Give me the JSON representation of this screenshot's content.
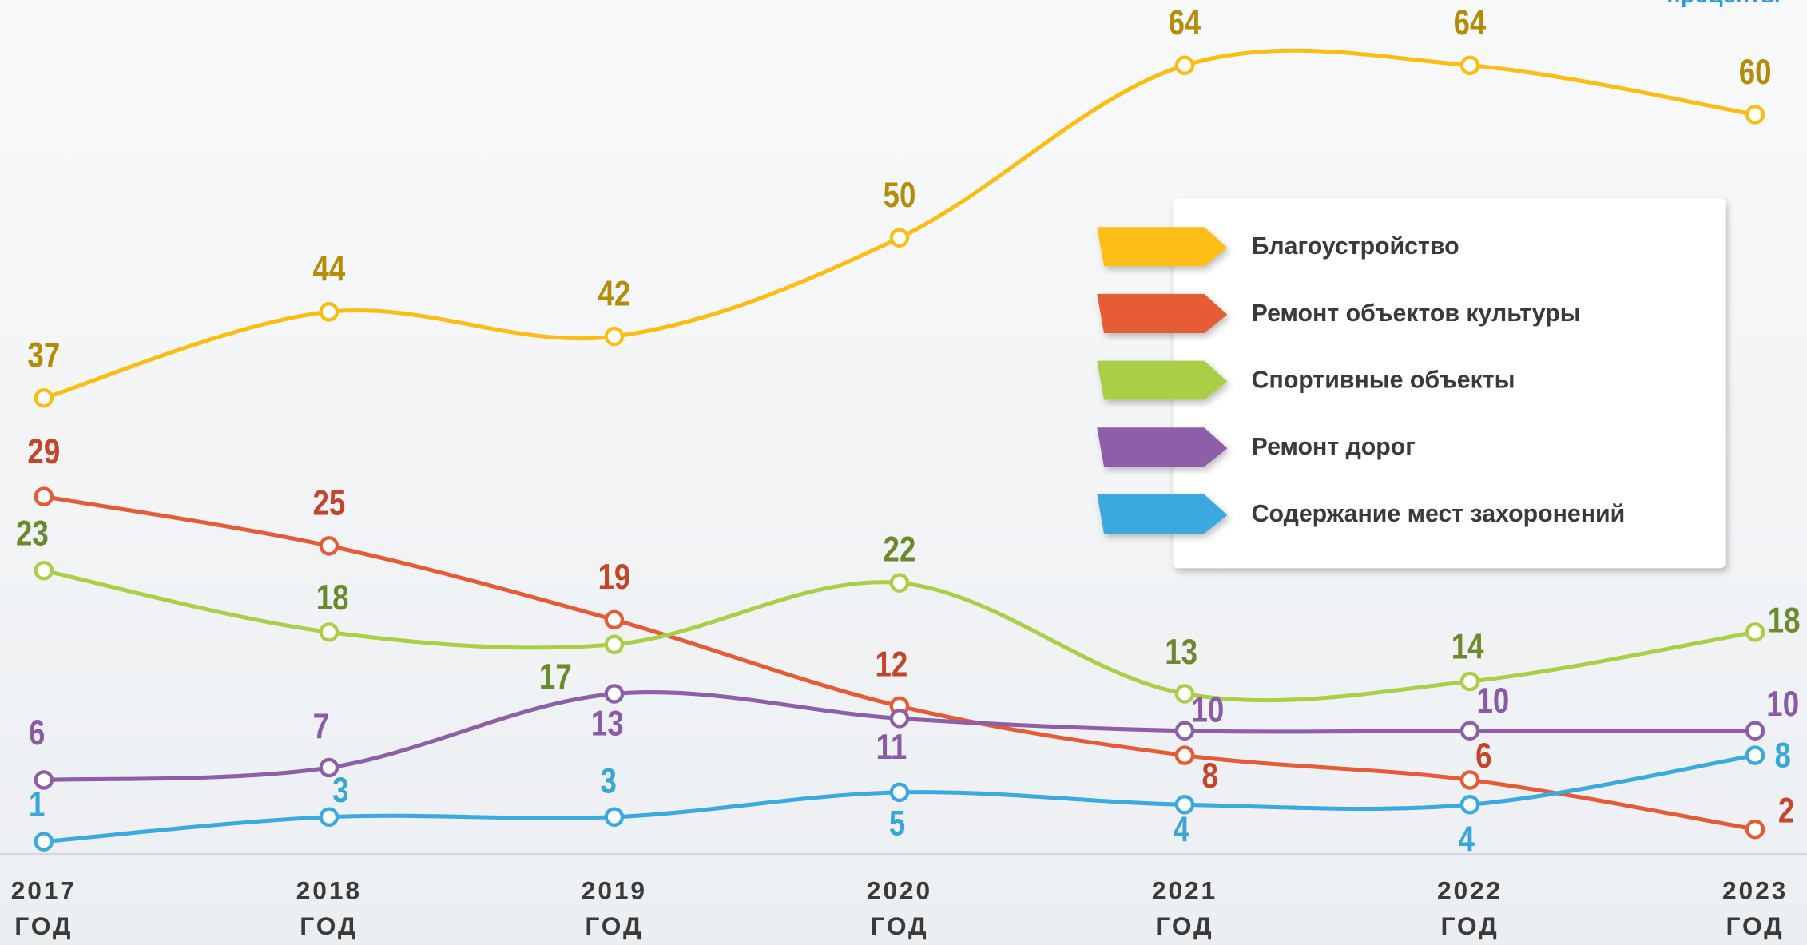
{
  "chart_data": {
    "type": "line",
    "y_label": "проценты",
    "categories": [
      "2017 ГОД",
      "2018 ГОД",
      "2019 ГОД",
      "2020 ГОД",
      "2021 ГОД",
      "2022 ГОД",
      "2023 ГОД"
    ],
    "ylim": [
      0,
      69.3
    ],
    "smooth": true,
    "series": [
      {
        "name": "Благоустройство",
        "color": "#fbbd12",
        "label_color": "#b48c08",
        "values": [
          37,
          44,
          42,
          50,
          64,
          64,
          60
        ]
      },
      {
        "name": "Ремонт объектов культуры",
        "color": "#e55b35",
        "label_color": "#c4452a",
        "values": [
          29,
          25,
          19,
          12,
          8,
          6,
          2
        ]
      },
      {
        "name": "Спортивные объекты",
        "color": "#a8cf45",
        "label_color": "#6b8a2c",
        "values": [
          23,
          18,
          17,
          22,
          13,
          14,
          18
        ]
      },
      {
        "name": "Ремонт дорог",
        "color": "#8e5fa8",
        "label_color": "#8a5aa8",
        "values": [
          6,
          7,
          13,
          11,
          10,
          10,
          10
        ]
      },
      {
        "name": "Содержание мест захоронений",
        "color": "#3aa9df",
        "label_color": "#38a6d6",
        "values": [
          1,
          3,
          3,
          5,
          4,
          4,
          8
        ]
      }
    ]
  }
}
